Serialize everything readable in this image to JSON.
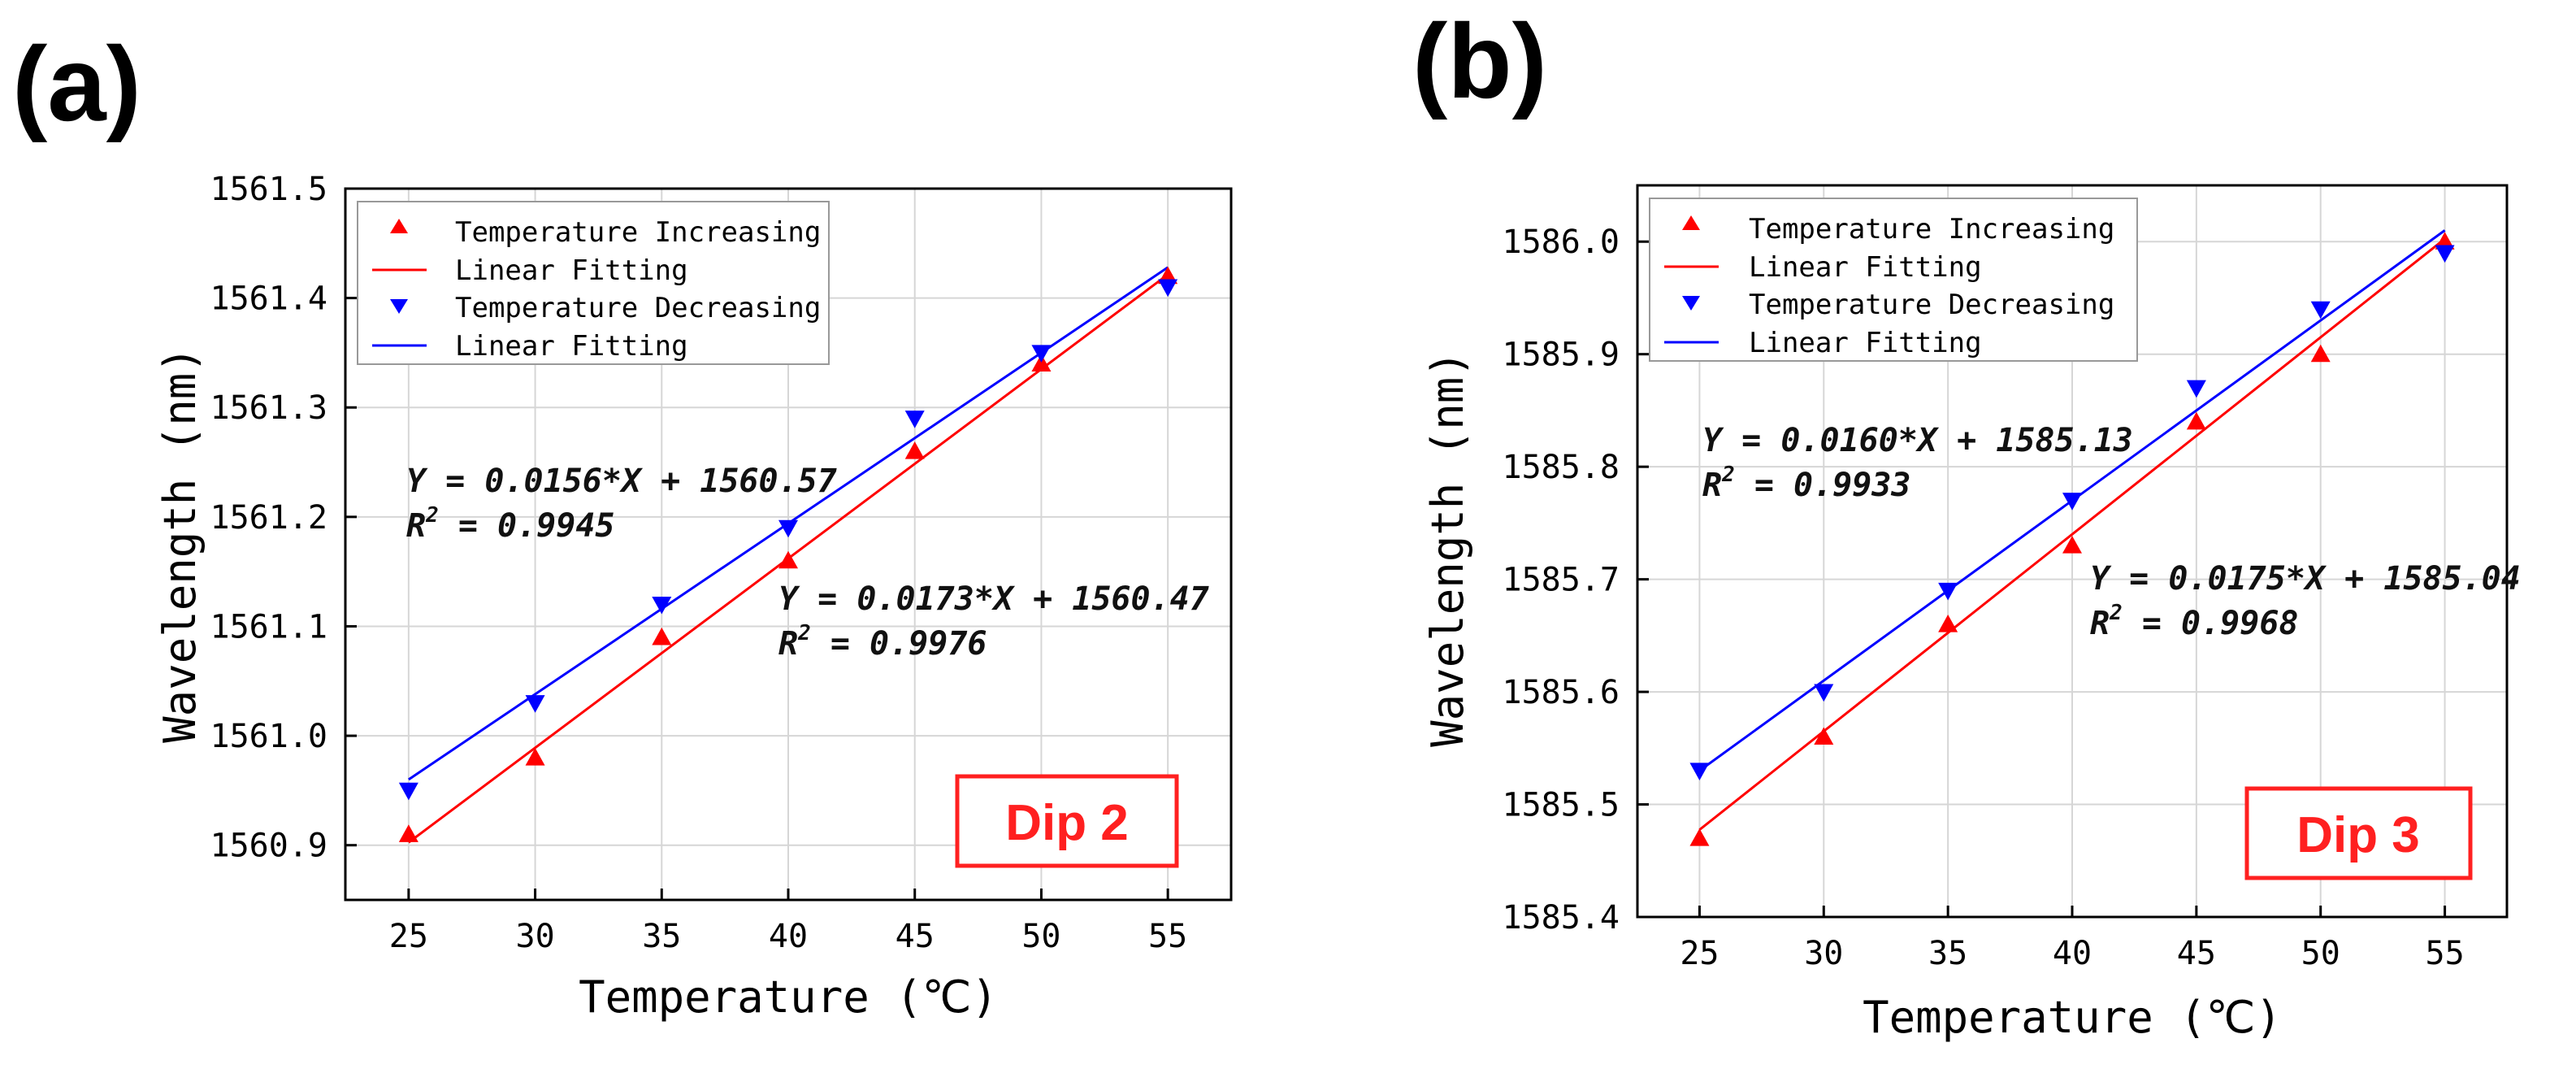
{
  "figure": {
    "panel_labels": [
      "(a)",
      "(b)"
    ]
  },
  "colors": {
    "increasing": "#ff0000",
    "decreasing": "#0000ff",
    "badge": "#ff2020"
  },
  "chart_data": [
    {
      "type": "scatter",
      "panel": "(a)",
      "title": "",
      "xlabel": "Temperature (℃)",
      "ylabel": "Wavelength (nm)",
      "xlim": [
        22.5,
        57.5
      ],
      "ylim": [
        1560.85,
        1561.5
      ],
      "xticks": [
        25,
        30,
        35,
        40,
        45,
        50,
        55
      ],
      "xtick_labels": [
        "25",
        "30",
        "35",
        "40",
        "45",
        "50",
        "55"
      ],
      "yticks": [
        1560.9,
        1561.0,
        1561.1,
        1561.2,
        1561.3,
        1561.4,
        1561.5
      ],
      "ytick_labels": [
        "1560.9",
        "1561.0",
        "1561.1",
        "1561.2",
        "1561.3",
        "1561.4",
        "1561.5"
      ],
      "grid": true,
      "legend_position": "top-left",
      "legend": [
        "Temperature Increasing",
        "Linear Fitting",
        "Temperature Decreasing",
        "Linear Fitting"
      ],
      "badge": "Dip 2",
      "series": [
        {
          "name": "Temperature Increasing",
          "marker": "triangle-up",
          "color": "#ff0000",
          "x": [
            25,
            30,
            35,
            40,
            45,
            50,
            55
          ],
          "y": [
            1560.91,
            1560.98,
            1561.09,
            1561.16,
            1561.26,
            1561.34,
            1561.42
          ],
          "fit": {
            "slope": 0.0173,
            "intercept": 1560.47,
            "r2": 0.9976
          }
        },
        {
          "name": "Temperature Decreasing",
          "marker": "triangle-down",
          "color": "#0000ff",
          "x": [
            25,
            30,
            35,
            40,
            45,
            50,
            55
          ],
          "y": [
            1560.95,
            1561.03,
            1561.12,
            1561.19,
            1561.29,
            1561.35,
            1561.41
          ],
          "fit": {
            "slope": 0.0156,
            "intercept": 1560.57,
            "r2": 0.9945
          }
        }
      ],
      "annotations": [
        {
          "line1": "Y = 0.0156*X + 1560.57",
          "r2_label": "R",
          "r2_sup": "2",
          "r2_value": " = 0.9945",
          "position": "upper-left"
        },
        {
          "line1": "Y = 0.0173*X + 1560.47",
          "r2_label": "R",
          "r2_sup": "2",
          "r2_value": " = 0.9976",
          "position": "middle-right"
        }
      ]
    },
    {
      "type": "scatter",
      "panel": "(b)",
      "title": "",
      "xlabel": "Temperature (℃)",
      "ylabel": "Wavelength (nm)",
      "xlim": [
        22.5,
        57.5
      ],
      "ylim": [
        1585.4,
        1586.05
      ],
      "xticks": [
        25,
        30,
        35,
        40,
        45,
        50,
        55
      ],
      "xtick_labels": [
        "25",
        "30",
        "35",
        "40",
        "45",
        "50",
        "55"
      ],
      "yticks": [
        1585.4,
        1585.5,
        1585.6,
        1585.7,
        1585.8,
        1585.9,
        1586.0
      ],
      "ytick_labels": [
        "1585.4",
        "1585.5",
        "1585.6",
        "1585.7",
        "1585.8",
        "1585.9",
        "1586.0"
      ],
      "grid": true,
      "legend_position": "top-left",
      "legend": [
        "Temperature Increasing",
        "Linear Fitting",
        "Temperature Decreasing",
        "Linear Fitting"
      ],
      "badge": "Dip 3",
      "series": [
        {
          "name": "Temperature Increasing",
          "marker": "triangle-up",
          "color": "#ff0000",
          "x": [
            25,
            30,
            35,
            40,
            45,
            50,
            55
          ],
          "y": [
            1585.47,
            1585.56,
            1585.66,
            1585.73,
            1585.84,
            1585.9,
            1586.0
          ],
          "fit": {
            "slope": 0.0175,
            "intercept": 1585.04,
            "r2": 0.9968
          }
        },
        {
          "name": "Temperature Decreasing",
          "marker": "triangle-down",
          "color": "#0000ff",
          "x": [
            25,
            30,
            35,
            40,
            45,
            50,
            55
          ],
          "y": [
            1585.53,
            1585.6,
            1585.69,
            1585.77,
            1585.87,
            1585.94,
            1585.99
          ],
          "fit": {
            "slope": 0.016,
            "intercept": 1585.13,
            "r2": 0.9933
          }
        }
      ],
      "annotations": [
        {
          "line1": "Y = 0.0160*X + 1585.13",
          "r2_label": "R",
          "r2_sup": "2",
          "r2_value": " = 0.9933",
          "position": "upper-left"
        },
        {
          "line1": "Y = 0.0175*X + 1585.04",
          "r2_label": "R",
          "r2_sup": "2",
          "r2_value": " = 0.9968",
          "position": "middle-right"
        }
      ]
    }
  ]
}
